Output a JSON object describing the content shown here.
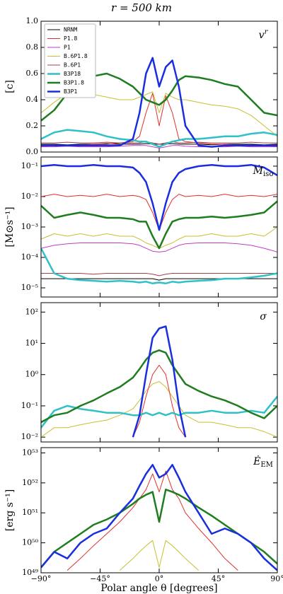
{
  "chart_data": [
    {
      "type": "line",
      "title": "r = 500 km",
      "ylabel": "[c]",
      "annotation": {
        "base": "v",
        "sup": "r"
      },
      "x": [
        -90,
        -80,
        -70,
        -60,
        -50,
        -40,
        -30,
        -20,
        -15,
        -10,
        -5,
        0,
        5,
        10,
        15,
        20,
        30,
        40,
        50,
        60,
        70,
        80,
        90
      ],
      "xlim": [
        -90,
        90
      ],
      "xticks": [
        -90,
        -45,
        0,
        45,
        90
      ],
      "ylim": [
        0,
        1
      ],
      "yticks": [
        {
          "value": 0,
          "label": "0.0"
        },
        0.2,
        0.4,
        0.6,
        0.8,
        {
          "value": 1,
          "label": "1.0"
        }
      ],
      "log_scale": false,
      "legend": "upper left",
      "series": [
        {
          "name": "NRNM",
          "color": "#000000",
          "linewidth": 1,
          "values": [
            0.06,
            0.06,
            0.055,
            0.06,
            0.06,
            0.065,
            0.06,
            0.06,
            0.06,
            0.065,
            0.06,
            0.06,
            0.06,
            0.065,
            0.06,
            0.06,
            0.06,
            0.055,
            0.06,
            0.06,
            0.06,
            0.055,
            0.06
          ]
        },
        {
          "name": "P1.8",
          "color": "#e0302a",
          "linewidth": 1,
          "values": [
            0.04,
            0.05,
            0.05,
            0.05,
            0.06,
            0.06,
            0.07,
            0.08,
            0.12,
            0.3,
            0.45,
            0.2,
            0.43,
            0.3,
            0.1,
            0.08,
            0.07,
            0.06,
            0.06,
            0.05,
            0.05,
            0.05,
            0.04
          ]
        },
        {
          "name": "P1",
          "color": "#c03cc8",
          "linewidth": 1,
          "values": [
            0.04,
            0.04,
            0.045,
            0.04,
            0.04,
            0.04,
            0.045,
            0.05,
            0.05,
            0.05,
            0.04,
            0.03,
            0.04,
            0.05,
            0.05,
            0.045,
            0.04,
            0.04,
            0.04,
            0.045,
            0.04,
            0.04,
            0.04
          ]
        },
        {
          "name": "B.6P1.8",
          "color": "#c8c030",
          "linewidth": 1,
          "values": [
            0.3,
            0.38,
            0.45,
            0.45,
            0.44,
            0.42,
            0.4,
            0.4,
            0.42,
            0.44,
            0.46,
            0.3,
            0.45,
            0.42,
            0.4,
            0.4,
            0.38,
            0.36,
            0.35,
            0.33,
            0.28,
            0.2,
            0.12
          ]
        },
        {
          "name": "B.6P1",
          "color": "#a04048",
          "linewidth": 1,
          "values": [
            0.07,
            0.07,
            0.075,
            0.07,
            0.07,
            0.075,
            0.07,
            0.07,
            0.07,
            0.08,
            0.07,
            0.06,
            0.07,
            0.08,
            0.07,
            0.07,
            0.075,
            0.07,
            0.07,
            0.07,
            0.075,
            0.07,
            0.07
          ]
        },
        {
          "name": "B3P18",
          "color": "#30c0c8",
          "linewidth": 2.5,
          "values": [
            0.1,
            0.15,
            0.17,
            0.16,
            0.15,
            0.12,
            0.1,
            0.09,
            0.08,
            0.08,
            0.06,
            0.04,
            0.06,
            0.08,
            0.09,
            0.1,
            0.1,
            0.11,
            0.12,
            0.12,
            0.14,
            0.15,
            0.13
          ]
        },
        {
          "name": "B3P1.8",
          "color": "#1e7d1e",
          "linewidth": 2.5,
          "values": [
            0.24,
            0.32,
            0.45,
            0.55,
            0.58,
            0.6,
            0.56,
            0.5,
            0.45,
            0.4,
            0.38,
            0.36,
            0.4,
            0.47,
            0.55,
            0.58,
            0.57,
            0.55,
            0.52,
            0.5,
            0.4,
            0.3,
            0.28
          ]
        },
        {
          "name": "B3P1",
          "color": "#1a2ee0",
          "linewidth": 2.5,
          "values": [
            0.05,
            0.05,
            0.05,
            0.05,
            0.05,
            0.05,
            0.05,
            0.1,
            0.3,
            0.6,
            0.72,
            0.5,
            0.65,
            0.7,
            0.5,
            0.2,
            0.05,
            0.04,
            0.05,
            0.05,
            0.05,
            0.05,
            0.05
          ]
        }
      ]
    },
    {
      "type": "line",
      "ylabel": "[M⊙s⁻¹]",
      "annotation": {
        "base": "Ṁ",
        "sub": "iso"
      },
      "x": [
        -90,
        -80,
        -70,
        -60,
        -50,
        -40,
        -30,
        -20,
        -15,
        -10,
        -5,
        0,
        5,
        10,
        15,
        20,
        30,
        40,
        50,
        60,
        70,
        80,
        90
      ],
      "xlim": [
        -90,
        90
      ],
      "xticks": [
        -90,
        -45,
        0,
        45,
        90
      ],
      "ylim": [
        5e-06,
        0.2
      ],
      "yticks": [
        {
          "value": 1e-05,
          "label": "10⁻⁵"
        },
        {
          "value": 0.0001,
          "label": "10⁻⁴"
        },
        {
          "value": 0.001,
          "label": "10⁻³"
        },
        {
          "value": 0.01,
          "label": "10⁻²"
        },
        {
          "value": 0.1,
          "label": "10⁻¹"
        }
      ],
      "log_scale": true,
      "series": [
        {
          "color": "#000000",
          "linewidth": 1,
          "values": [
            2e-05,
            2e-05,
            2e-05,
            2e-05,
            2e-05,
            2e-05,
            2e-05,
            2e-05,
            2e-05,
            2e-05,
            2e-05,
            1.8e-05,
            2e-05,
            2e-05,
            2e-05,
            2e-05,
            2e-05,
            2e-05,
            2e-05,
            2e-05,
            2e-05,
            2e-05,
            2e-05
          ]
        },
        {
          "color": "#e0302a",
          "linewidth": 1,
          "values": [
            0.01,
            0.012,
            0.01,
            0.011,
            0.01,
            0.012,
            0.01,
            0.011,
            0.01,
            0.008,
            0.003,
            0.0008,
            0.003,
            0.008,
            0.012,
            0.01,
            0.011,
            0.01,
            0.012,
            0.01,
            0.011,
            0.01,
            0.012
          ]
        },
        {
          "color": "#c03cc8",
          "linewidth": 1,
          "values": [
            0.0002,
            0.00025,
            0.00028,
            0.0003,
            0.0003,
            0.0003,
            0.0003,
            0.00028,
            0.00025,
            0.0002,
            0.00016,
            0.00015,
            0.00016,
            0.0002,
            0.00025,
            0.00028,
            0.0003,
            0.0003,
            0.0003,
            0.00028,
            0.00025,
            0.0002,
            0.00015
          ]
        },
        {
          "color": "#c8c030",
          "linewidth": 1,
          "values": [
            0.0004,
            0.0006,
            0.0005,
            0.0006,
            0.0005,
            0.0006,
            0.0005,
            0.0005,
            0.0004,
            0.0003,
            0.00025,
            0.0002,
            0.00025,
            0.0003,
            0.0004,
            0.0005,
            0.0005,
            0.0006,
            0.0005,
            0.0005,
            0.0006,
            0.0005,
            0.001
          ]
        },
        {
          "color": "#a04048",
          "linewidth": 1,
          "values": [
            3e-05,
            3e-05,
            3e-05,
            3e-05,
            2.8e-05,
            3e-05,
            3e-05,
            3e-05,
            3e-05,
            3e-05,
            2.8e-05,
            2.5e-05,
            2.8e-05,
            3e-05,
            3e-05,
            3e-05,
            3e-05,
            3e-05,
            3e-05,
            3e-05,
            3e-05,
            3e-05,
            3e-05
          ]
        },
        {
          "color": "#30c0c8",
          "linewidth": 2.5,
          "values": [
            0.0002,
            3e-05,
            2e-05,
            1.8e-05,
            1.7e-05,
            1.6e-05,
            1.7e-05,
            1.6e-05,
            1.5e-05,
            1.6e-05,
            1.4e-05,
            1.5e-05,
            1.4e-05,
            1.6e-05,
            1.5e-05,
            1.6e-05,
            1.7e-05,
            1.8e-05,
            2e-05,
            2e-05,
            2.2e-05,
            2.5e-05,
            3e-05
          ]
        },
        {
          "color": "#1e7d1e",
          "linewidth": 2.5,
          "values": [
            0.005,
            0.002,
            0.0025,
            0.003,
            0.0025,
            0.002,
            0.002,
            0.0018,
            0.0015,
            0.0015,
            0.0005,
            0.0002,
            0.0006,
            0.0015,
            0.0018,
            0.002,
            0.002,
            0.0022,
            0.002,
            0.0022,
            0.0025,
            0.003,
            0.007
          ]
        },
        {
          "color": "#1a2ee0",
          "linewidth": 2.5,
          "values": [
            0.1,
            0.11,
            0.1,
            0.1,
            0.11,
            0.1,
            0.1,
            0.09,
            0.06,
            0.03,
            0.006,
            0.0008,
            0.006,
            0.03,
            0.06,
            0.08,
            0.1,
            0.11,
            0.1,
            0.1,
            0.11,
            0.09,
            0.05
          ]
        }
      ]
    },
    {
      "type": "line",
      "annotation": {
        "base": "σ"
      },
      "x": [
        -90,
        -80,
        -70,
        -60,
        -50,
        -40,
        -30,
        -20,
        -15,
        -10,
        -5,
        0,
        5,
        10,
        15,
        20,
        30,
        40,
        50,
        60,
        70,
        80,
        90
      ],
      "xlim": [
        -90,
        90
      ],
      "xticks": [
        -90,
        -45,
        0,
        45,
        90
      ],
      "ylim": [
        0.007,
        200
      ],
      "yticks": [
        {
          "value": 0.01,
          "label": "10⁻²"
        },
        {
          "value": 0.1,
          "label": "10⁻¹"
        },
        {
          "value": 1,
          "label": "10⁰"
        },
        {
          "value": 10,
          "label": "10¹"
        },
        {
          "value": 100,
          "label": "10²"
        }
      ],
      "log_scale": true,
      "series": [
        {
          "color": "#c8c030",
          "linewidth": 1,
          "values": [
            0.01,
            0.02,
            0.02,
            0.025,
            0.03,
            0.035,
            0.05,
            0.08,
            0.15,
            0.3,
            0.5,
            0.6,
            0.4,
            0.2,
            0.1,
            0.05,
            0.03,
            0.03,
            0.025,
            0.02,
            0.02,
            0.015,
            0.01
          ]
        },
        {
          "color": "#e0302a",
          "linewidth": 1,
          "values": [
            null,
            null,
            null,
            null,
            null,
            null,
            null,
            0.01,
            0.03,
            0.2,
            1,
            2,
            1,
            0.1,
            0.02,
            0.01,
            null,
            null,
            null,
            null,
            null,
            null,
            null
          ]
        },
        {
          "color": "#30c0c8",
          "linewidth": 2.5,
          "values": [
            0.02,
            0.07,
            0.1,
            0.08,
            0.07,
            0.06,
            0.06,
            0.05,
            0.05,
            0.06,
            0.05,
            0.06,
            0.05,
            0.06,
            0.05,
            0.06,
            0.06,
            0.07,
            0.06,
            0.06,
            0.07,
            0.06,
            0.2
          ]
        },
        {
          "color": "#1e7d1e",
          "linewidth": 2.5,
          "values": [
            0.03,
            0.05,
            0.06,
            0.1,
            0.15,
            0.25,
            0.4,
            0.8,
            1.5,
            3,
            5,
            6,
            5,
            2,
            1,
            0.5,
            0.3,
            0.2,
            0.15,
            0.1,
            0.06,
            0.04,
            0.1
          ]
        },
        {
          "color": "#1a2ee0",
          "linewidth": 2.5,
          "values": [
            null,
            null,
            null,
            null,
            null,
            null,
            null,
            0.01,
            0.05,
            1,
            15,
            30,
            35,
            3,
            0.1,
            0.01,
            null,
            null,
            null,
            null,
            null,
            null,
            null
          ]
        }
      ]
    },
    {
      "type": "line",
      "ylabel": "[erg s⁻¹]",
      "annotation": {
        "base": "Ė",
        "sub": "EM"
      },
      "xlabel": "Polar angle θ [degrees]",
      "x": [
        -90,
        -80,
        -70,
        -60,
        -50,
        -40,
        -30,
        -20,
        -15,
        -10,
        -5,
        0,
        5,
        10,
        15,
        20,
        30,
        40,
        50,
        60,
        70,
        80,
        90
      ],
      "xlim": [
        -90,
        90
      ],
      "xticks": [
        {
          "value": -90,
          "label": "−90°"
        },
        {
          "value": -45,
          "label": "−45°"
        },
        {
          "value": 0,
          "label": "0°"
        },
        {
          "value": 45,
          "label": "45°"
        },
        {
          "value": 90,
          "label": "90°"
        }
      ],
      "ylim": [
        1e+49,
        1.5e+53
      ],
      "yticks": [
        {
          "value": 1e+49,
          "label": "10⁴⁹"
        },
        {
          "value": 1e+50,
          "label": "10⁵⁰"
        },
        {
          "value": 1e+51,
          "label": "10⁵¹"
        },
        {
          "value": 1e+52,
          "label": "10⁵²"
        },
        {
          "value": 1e+53,
          "label": "10⁵³"
        }
      ],
      "log_scale": true,
      "series": [
        {
          "color": "#c8c030",
          "linewidth": 1,
          "values": [
            null,
            null,
            null,
            null,
            null,
            null,
            1.2e+49,
            3e+49,
            5e+49,
            8e+49,
            1.2e+50,
            1.5e+49,
            1.2e+50,
            8e+49,
            5e+49,
            3e+49,
            1.2e+49,
            null,
            null,
            null,
            null,
            null,
            null
          ]
        },
        {
          "color": "#e0302a",
          "linewidth": 1,
          "values": [
            null,
            null,
            1.2e+49,
            3e+49,
            8e+49,
            2e+50,
            5e+50,
            1.5e+51,
            3e+51,
            6e+51,
            2e+52,
            5e+51,
            2.5e+52,
            6e+51,
            3e+51,
            1e+51,
            3e+50,
            1e+50,
            3e+49,
            1.2e+49,
            null,
            null,
            null
          ]
        },
        {
          "color": "#1e7d1e",
          "linewidth": 2.5,
          "values": [
            1.5e+49,
            5e+49,
            1e+50,
            2e+50,
            4e+50,
            6e+50,
            1e+51,
            2e+51,
            3e+51,
            4e+51,
            5e+51,
            5e+50,
            6e+51,
            5e+51,
            4e+51,
            3e+51,
            1.5e+51,
            8e+50,
            4e+50,
            2e+50,
            1e+50,
            5e+49,
            2e+49
          ]
        },
        {
          "color": "#1a2ee0",
          "linewidth": 2.5,
          "values": [
            1.5e+49,
            5e+49,
            3e+49,
            1e+50,
            2e+50,
            3e+50,
            1e+51,
            3e+51,
            8e+51,
            2e+52,
            4e+52,
            1.5e+52,
            2e+52,
            4e+52,
            1.5e+52,
            5e+51,
            1e+51,
            2e+50,
            3e+50,
            2e+50,
            1e+50,
            3e+49,
            1.2e+49
          ]
        }
      ]
    }
  ]
}
